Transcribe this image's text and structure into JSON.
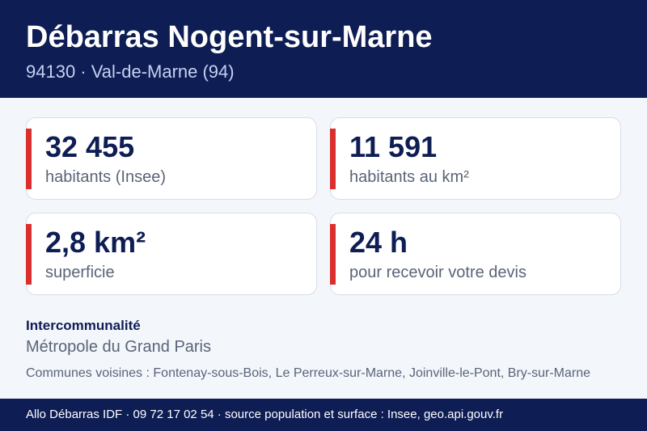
{
  "header": {
    "title": "Débarras Nogent-sur-Marne",
    "subtitle": "94130 · Val-de-Marne (94)"
  },
  "stats": [
    {
      "value": "32 455",
      "label": "habitants (Insee)"
    },
    {
      "value": "11 591",
      "label": "habitants au km²"
    },
    {
      "value": "2,8 km²",
      "label": "superficie"
    },
    {
      "value": "24 h",
      "label": "pour recevoir votre devis"
    }
  ],
  "intercommunalite": {
    "title": "Intercommunalité",
    "value": "Métropole du Grand Paris"
  },
  "neighbors": "Communes voisines : Fontenay-sous-Bois, Le Perreux-sur-Marne, Joinville-le-Pont, Bry-sur-Marne",
  "footer": {
    "text": "Allo Débarras IDF · 09 72 17 02 54 · source population et surface : Insee, geo.api.gouv.fr"
  },
  "colors": {
    "navy": "#0e1d54",
    "accent_red": "#d92f2f",
    "background": "#f3f6fb"
  }
}
